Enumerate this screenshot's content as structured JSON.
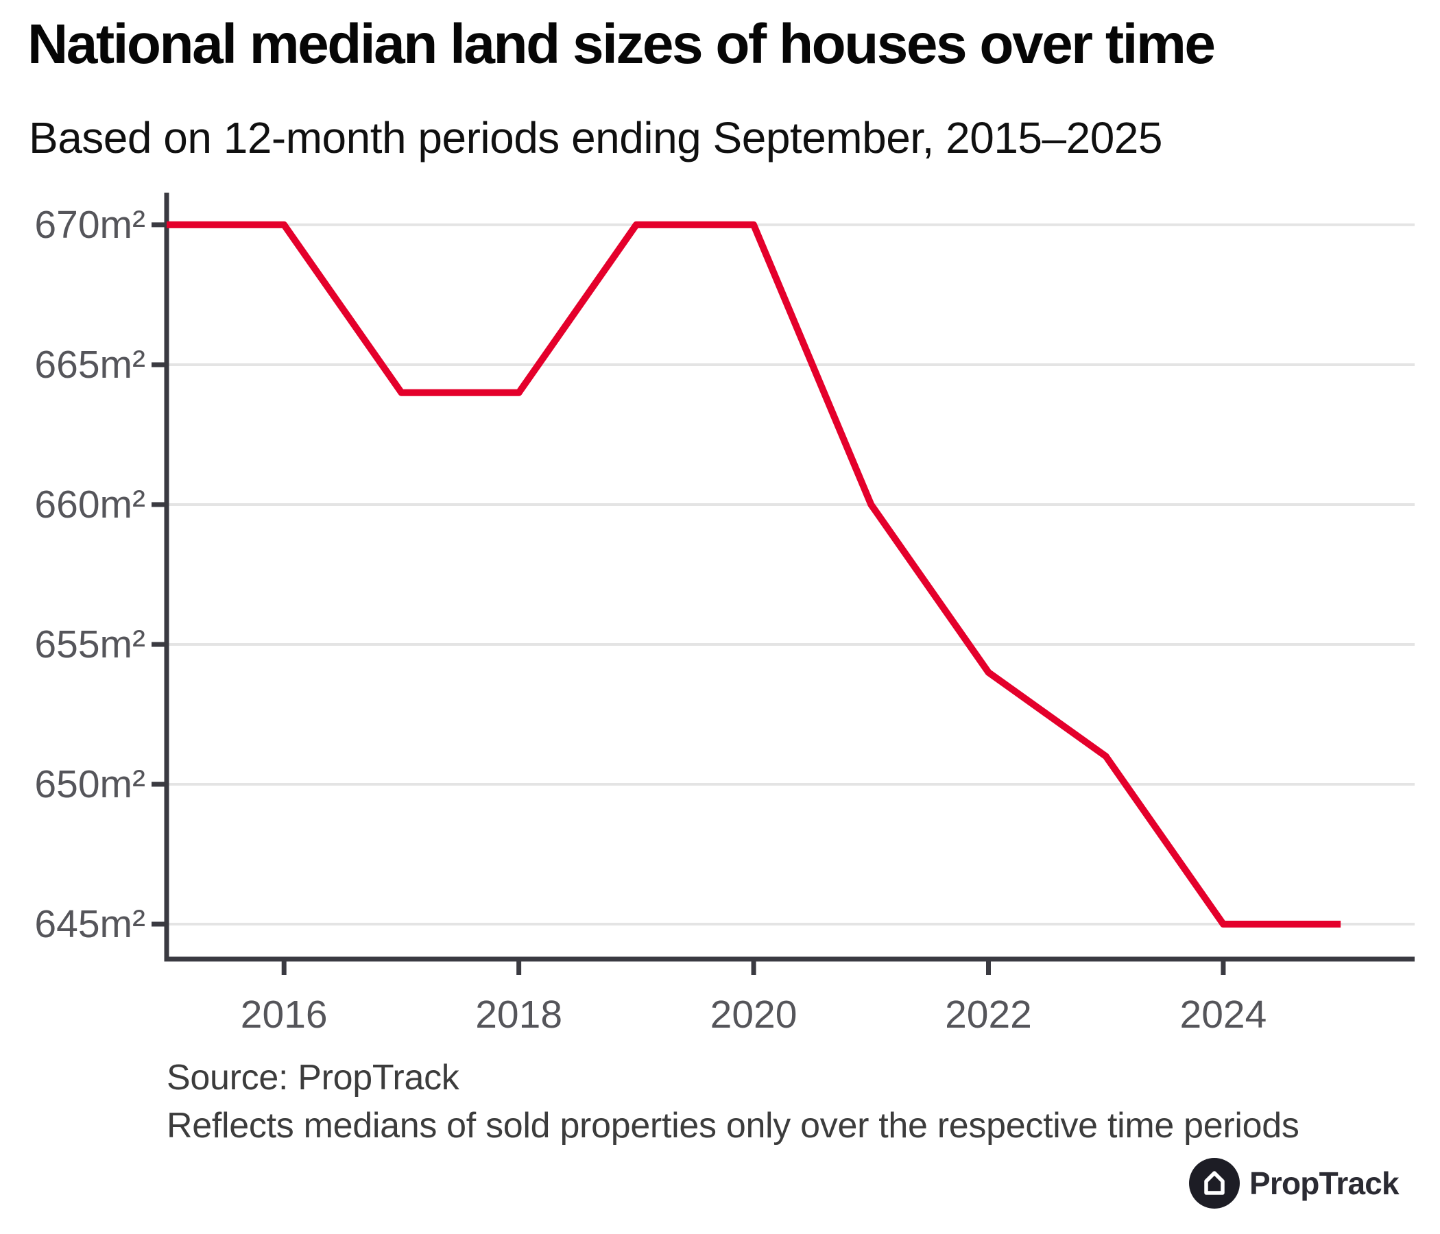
{
  "title": "National median land sizes of houses over time",
  "subtitle": "Based on 12-month periods ending September, 2015–2025",
  "source": {
    "line1": "Source: PropTrack",
    "line2": "Reflects medians of sold properties only over the respective time periods"
  },
  "logo": {
    "text": "PropTrack"
  },
  "colors": {
    "line": "#e4002b",
    "axis": "#3a3a41",
    "grid": "#e4e4e4",
    "tick_label": "#55555a",
    "source_text": "#3c3c3c",
    "logo_bg": "#1d1d25",
    "logo_text": "#2b2b33",
    "background": "#ffffff"
  },
  "chart_data": {
    "type": "line",
    "series_name": "national-median-land-size",
    "unit": "m²",
    "x": [
      2015,
      2016,
      2017,
      2018,
      2019,
      2020,
      2021,
      2022,
      2023,
      2024,
      2025
    ],
    "values": [
      670,
      670,
      664,
      664,
      670,
      670,
      660,
      654,
      651,
      645,
      645
    ],
    "x_ticks": [
      2016,
      2018,
      2020,
      2022,
      2024
    ],
    "x_tick_labels": [
      "2016",
      "2018",
      "2020",
      "2022",
      "2024"
    ],
    "y_ticks": [
      670,
      665,
      660,
      655,
      650,
      645
    ],
    "y_tick_labels": [
      "670m²",
      "665m²",
      "660m²",
      "655m²",
      "650m²",
      "645m²"
    ],
    "xlim": [
      2015,
      2025.63
    ],
    "ylim": [
      643.75,
      671.15
    ],
    "grid": "horizontal",
    "legend": "none"
  }
}
